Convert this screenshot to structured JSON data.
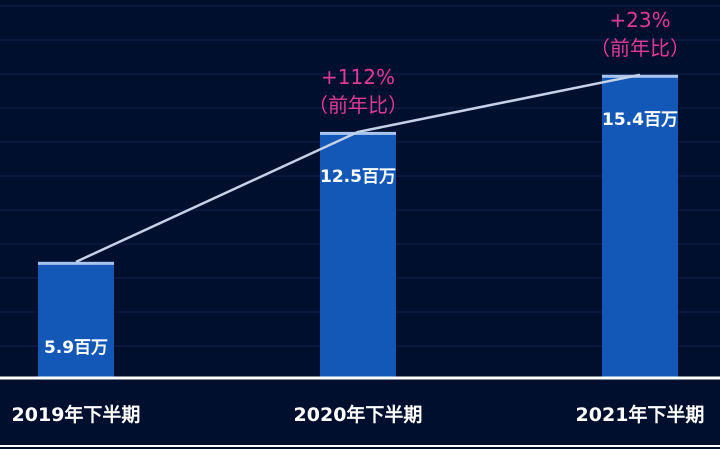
{
  "colors": {
    "background": "#000f2e",
    "gridline": "#0f2249",
    "bar": "#1358b6",
    "bar_cap": "#a9c4ee",
    "trend_line": "#c4d1e8",
    "baseline": "#ffffff",
    "value_text": "#ffffff",
    "annotation_text": "#e1399a"
  },
  "chart_data": {
    "type": "bar",
    "categories": [
      "2019年下半期",
      "2020年下半期",
      "2021年下半期"
    ],
    "values": [
      5.9,
      12.5,
      15.4
    ],
    "value_labels": [
      "5.9百万",
      "12.5百万",
      "15.4百万"
    ],
    "annotations": [
      null,
      {
        "growth": "+112%",
        "note": "（前年比）"
      },
      {
        "growth": "+23%",
        "note": "（前年比）"
      }
    ],
    "trend_line": true,
    "ylim": [
      0,
      19.2
    ],
    "grid": true
  }
}
